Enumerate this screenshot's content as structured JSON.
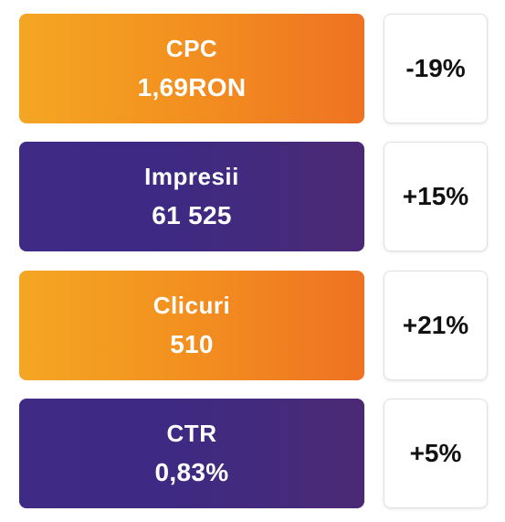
{
  "colors": {
    "orange_start": "#f4a623",
    "orange_end": "#ef7222",
    "purple_start": "#3f2a86",
    "purple_end": "#4b2a75",
    "change_text": "#111111"
  },
  "metrics": [
    {
      "label": "CPC",
      "value": "1,69RON",
      "change": "-19%",
      "style": "orange"
    },
    {
      "label": "Impresii",
      "value": "61 525",
      "change": "+15%",
      "style": "purple"
    },
    {
      "label": "Clicuri",
      "value": "510",
      "change": "+21%",
      "style": "orange"
    },
    {
      "label": "CTR",
      "value": "0,83%",
      "change": "+5%",
      "style": "purple"
    }
  ]
}
